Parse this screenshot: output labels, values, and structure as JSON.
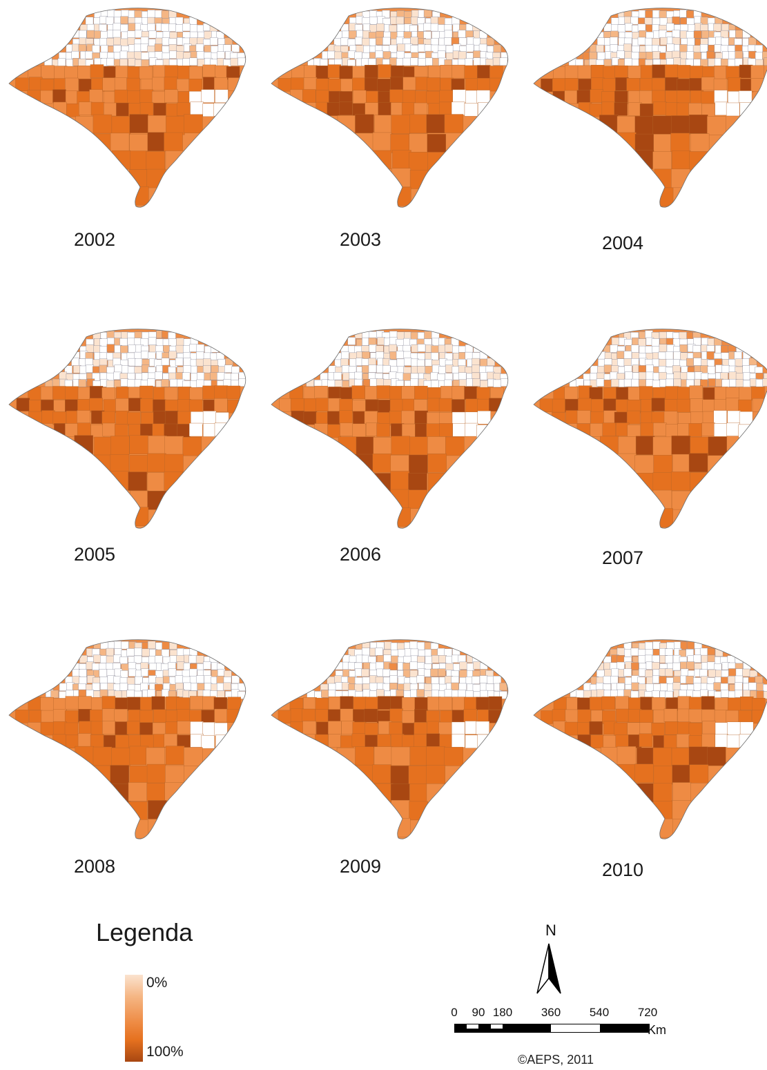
{
  "maps": [
    {
      "year": "2002",
      "intensity": 0.55,
      "north_fill": 0.7
    },
    {
      "year": "2003",
      "intensity": 0.8,
      "north_fill": 0.65
    },
    {
      "year": "2004",
      "intensity": 0.8,
      "north_fill": 0.6
    },
    {
      "year": "2005",
      "intensity": 0.8,
      "north_fill": 0.6
    },
    {
      "year": "2006",
      "intensity": 0.75,
      "north_fill": 0.65
    },
    {
      "year": "2007",
      "intensity": 0.75,
      "north_fill": 0.6
    },
    {
      "year": "2008",
      "intensity": 0.75,
      "north_fill": 0.6
    },
    {
      "year": "2009",
      "intensity": 0.75,
      "north_fill": 0.65
    },
    {
      "year": "2010",
      "intensity": 0.7,
      "north_fill": 0.6
    }
  ],
  "legend": {
    "title": "Legenda",
    "min_label": "0%",
    "max_label": "100%",
    "colors": [
      "#fbe3cf",
      "#f5b684",
      "#ee8b44",
      "#e5711f",
      "#a84712"
    ]
  },
  "north_arrow": {
    "label": "N"
  },
  "scale_bar": {
    "ticks": [
      "0",
      "90",
      "180",
      "360",
      "540",
      "720"
    ],
    "unit": "Km"
  },
  "credit": "©AEPS, 2011"
}
